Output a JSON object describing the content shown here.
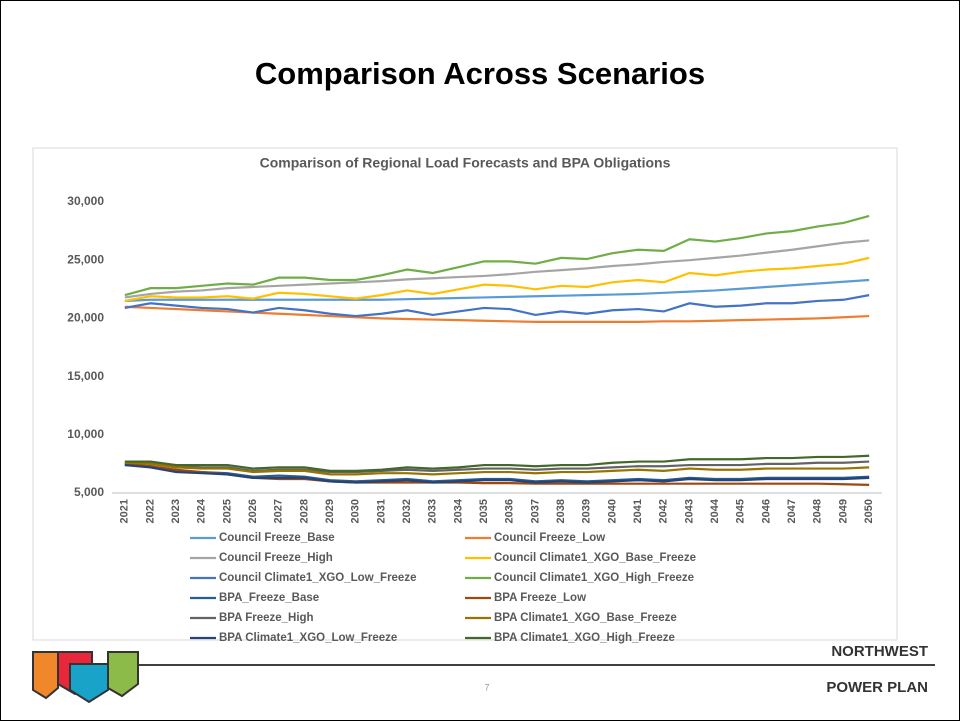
{
  "slide": {
    "title": "Comparison Across Scenarios",
    "page_number": "7",
    "org_line1": "NORTHWEST",
    "org_line2": "POWER PLAN"
  },
  "chart_data": {
    "type": "line",
    "title": "Comparison of Regional Load Forecasts and BPA Obligations",
    "categories": [
      "2021",
      "2022",
      "2023",
      "2024",
      "2025",
      "2026",
      "2027",
      "2028",
      "2029",
      "2030",
      "2031",
      "2032",
      "2033",
      "2034",
      "2035",
      "2036",
      "2037",
      "2038",
      "2039",
      "2040",
      "2041",
      "2042",
      "2043",
      "2044",
      "2045",
      "2046",
      "2047",
      "2048",
      "2049",
      "2050"
    ],
    "ylim": [
      5000,
      30000
    ],
    "yticks": [
      {
        "value": 5000,
        "label": "5,000"
      },
      {
        "value": 10000,
        "label": "10,000"
      },
      {
        "value": 15000,
        "label": "15,000"
      },
      {
        "value": 20000,
        "label": "20,000"
      },
      {
        "value": 25000,
        "label": "25,000"
      },
      {
        "value": 30000,
        "label": "30,000"
      }
    ],
    "grid": false,
    "legend": "bottom",
    "series": [
      {
        "name": "Council Freeze_Base",
        "color": "#5b9bd5",
        "values": [
          21500,
          21600,
          21600,
          21600,
          21600,
          21600,
          21600,
          21600,
          21600,
          21600,
          21600,
          21650,
          21700,
          21750,
          21800,
          21850,
          21900,
          21950,
          22000,
          22050,
          22100,
          22200,
          22300,
          22400,
          22550,
          22700,
          22850,
          23000,
          23150,
          23300
        ]
      },
      {
        "name": "Council Freeze_Low",
        "color": "#ed7d31",
        "values": [
          21000,
          20900,
          20800,
          20700,
          20600,
          20500,
          20400,
          20300,
          20200,
          20100,
          20000,
          19950,
          19900,
          19850,
          19800,
          19750,
          19700,
          19700,
          19700,
          19700,
          19700,
          19750,
          19750,
          19800,
          19850,
          19900,
          19950,
          20000,
          20100,
          20200
        ]
      },
      {
        "name": "Council Freeze_High",
        "color": "#a5a5a5",
        "values": [
          21800,
          22100,
          22300,
          22400,
          22600,
          22700,
          22800,
          22900,
          23000,
          23100,
          23200,
          23350,
          23450,
          23550,
          23650,
          23800,
          24000,
          24150,
          24300,
          24500,
          24650,
          24850,
          25000,
          25200,
          25400,
          25650,
          25900,
          26200,
          26500,
          26700
        ]
      },
      {
        "name": "Council Climate1_XGO_Base_Freeze",
        "color": "#ffc000",
        "values": [
          21500,
          21900,
          21800,
          21800,
          21900,
          21700,
          22200,
          22100,
          21900,
          21700,
          22000,
          22400,
          22100,
          22500,
          22900,
          22800,
          22500,
          22800,
          22700,
          23100,
          23300,
          23100,
          23900,
          23700,
          24000,
          24200,
          24300,
          24500,
          24700,
          25200
        ]
      },
      {
        "name": "Council Climate1_XGO_Low_Freeze",
        "color": "#4472c4",
        "values": [
          20900,
          21300,
          21100,
          20900,
          20800,
          20500,
          20900,
          20700,
          20400,
          20200,
          20400,
          20700,
          20300,
          20600,
          20900,
          20800,
          20300,
          20600,
          20400,
          20700,
          20800,
          20600,
          21300,
          21000,
          21100,
          21300,
          21300,
          21500,
          21600,
          22000
        ]
      },
      {
        "name": "Council Climate1_XGO_High_Freeze",
        "color": "#70ad47",
        "values": [
          22000,
          22600,
          22600,
          22800,
          23000,
          22900,
          23500,
          23500,
          23300,
          23300,
          23700,
          24200,
          23900,
          24400,
          24900,
          24900,
          24700,
          25200,
          25100,
          25600,
          25900,
          25800,
          26800,
          26600,
          26900,
          27300,
          27500,
          27900,
          28200,
          28800
        ]
      },
      {
        "name": "BPA_Freeze_Base",
        "color": "#255e91",
        "values": [
          7400,
          7300,
          6900,
          6800,
          6700,
          6400,
          6500,
          6400,
          6100,
          6000,
          6100,
          6200,
          6000,
          6100,
          6200,
          6200,
          6000,
          6100,
          6000,
          6100,
          6200,
          6100,
          6300,
          6200,
          6200,
          6300,
          6300,
          6300,
          6300,
          6400
        ]
      },
      {
        "name": "BPA Freeze_Low",
        "color": "#9e480e",
        "values": [
          7500,
          7300,
          7000,
          6800,
          6600,
          6300,
          6200,
          6200,
          6000,
          5900,
          5900,
          5900,
          5900,
          5900,
          5850,
          5850,
          5800,
          5800,
          5800,
          5800,
          5800,
          5800,
          5800,
          5800,
          5800,
          5800,
          5800,
          5800,
          5750,
          5700
        ]
      },
      {
        "name": "BPA Freeze_High",
        "color": "#636363",
        "values": [
          7600,
          7600,
          7300,
          7200,
          7200,
          6900,
          7000,
          7000,
          6800,
          6800,
          6900,
          7000,
          6900,
          7000,
          7100,
          7100,
          7000,
          7100,
          7100,
          7200,
          7300,
          7300,
          7400,
          7400,
          7400,
          7500,
          7500,
          7600,
          7600,
          7700
        ]
      },
      {
        "name": "BPA Climate1_XGO_Base_Freeze",
        "color": "#997300",
        "values": [
          7600,
          7500,
          7200,
          7100,
          7100,
          6800,
          6900,
          6900,
          6600,
          6600,
          6700,
          6700,
          6600,
          6700,
          6800,
          6800,
          6700,
          6800,
          6800,
          6900,
          7000,
          6900,
          7100,
          7000,
          7000,
          7100,
          7100,
          7100,
          7100,
          7200
        ]
      },
      {
        "name": "BPA Climate1_XGO_Low_Freeze",
        "color": "#264478",
        "values": [
          7400,
          7200,
          6800,
          6700,
          6600,
          6300,
          6300,
          6300,
          6000,
          5900,
          6000,
          6100,
          5900,
          6000,
          6100,
          6100,
          5900,
          6000,
          5900,
          6000,
          6100,
          6000,
          6200,
          6100,
          6100,
          6200,
          6200,
          6200,
          6200,
          6300
        ]
      },
      {
        "name": "BPA Climate1_XGO_High_Freeze",
        "color": "#43682b",
        "values": [
          7700,
          7700,
          7400,
          7400,
          7400,
          7100,
          7200,
          7200,
          6900,
          6900,
          7000,
          7200,
          7100,
          7200,
          7400,
          7400,
          7300,
          7400,
          7400,
          7600,
          7700,
          7700,
          7900,
          7900,
          7900,
          8000,
          8000,
          8100,
          8100,
          8200
        ]
      }
    ]
  }
}
